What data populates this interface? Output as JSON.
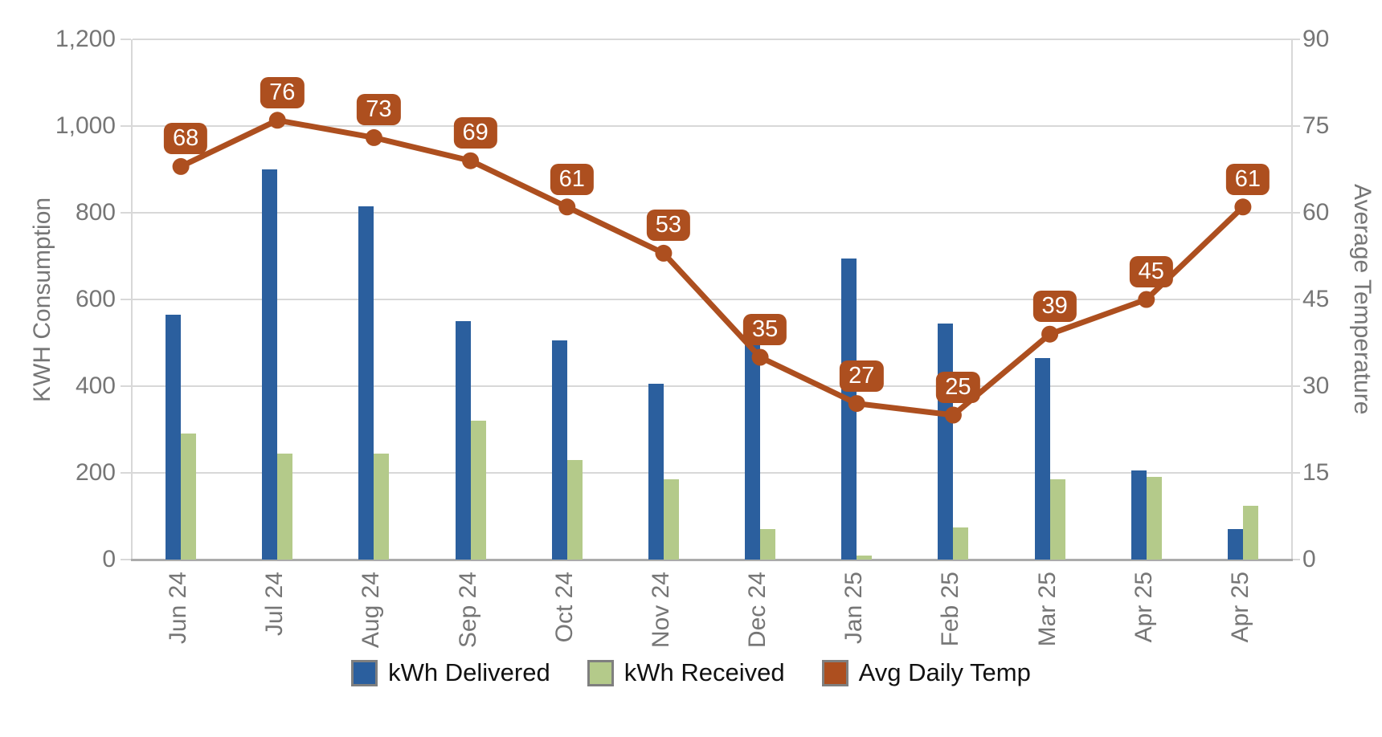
{
  "chart_data": {
    "type": "bar",
    "subtype": "grouped-bars-with-line-dual-axis",
    "categories": [
      "Jun 24",
      "Jul 24",
      "Aug 24",
      "Sep 24",
      "Oct 24",
      "Nov 24",
      "Dec 24",
      "Jan 25",
      "Feb 25",
      "Mar 25",
      "Apr 25",
      "Apr 25"
    ],
    "series": [
      {
        "name": "kWh Delivered",
        "type": "bar",
        "axis": "left",
        "color": "#2b5f9e",
        "values": [
          565,
          900,
          815,
          550,
          505,
          405,
          505,
          695,
          545,
          465,
          205,
          70
        ]
      },
      {
        "name": "kWh Received",
        "type": "bar",
        "axis": "left",
        "color": "#b4ca8a",
        "values": [
          290,
          245,
          245,
          320,
          230,
          185,
          70,
          10,
          75,
          185,
          190,
          125
        ]
      },
      {
        "name": "Avg Daily Temp",
        "type": "line",
        "axis": "right",
        "color": "#ad4f1f",
        "data_labels": true,
        "values": [
          68,
          76,
          73,
          69,
          61,
          53,
          35,
          27,
          25,
          39,
          45,
          61
        ]
      }
    ],
    "left_axis": {
      "label": "KWH Consumption",
      "min": 0,
      "max": 1200,
      "tick_step": 200,
      "tick_labels": [
        "1,200",
        "1,000",
        "800",
        "600",
        "400",
        "200",
        "0"
      ]
    },
    "right_axis": {
      "label": "Average Temperature",
      "min": 0,
      "max": 90,
      "tick_step": 15,
      "tick_labels": [
        "90",
        "75",
        "60",
        "45",
        "30",
        "15",
        "0"
      ]
    },
    "grid": true,
    "legend_position": "bottom"
  },
  "palette": {
    "grid_line": "#d8d8d8",
    "axis_baseline": "#ababab",
    "tick_text": "#767676",
    "legend_text": "#111111",
    "point_label_text": "#ffffff"
  }
}
